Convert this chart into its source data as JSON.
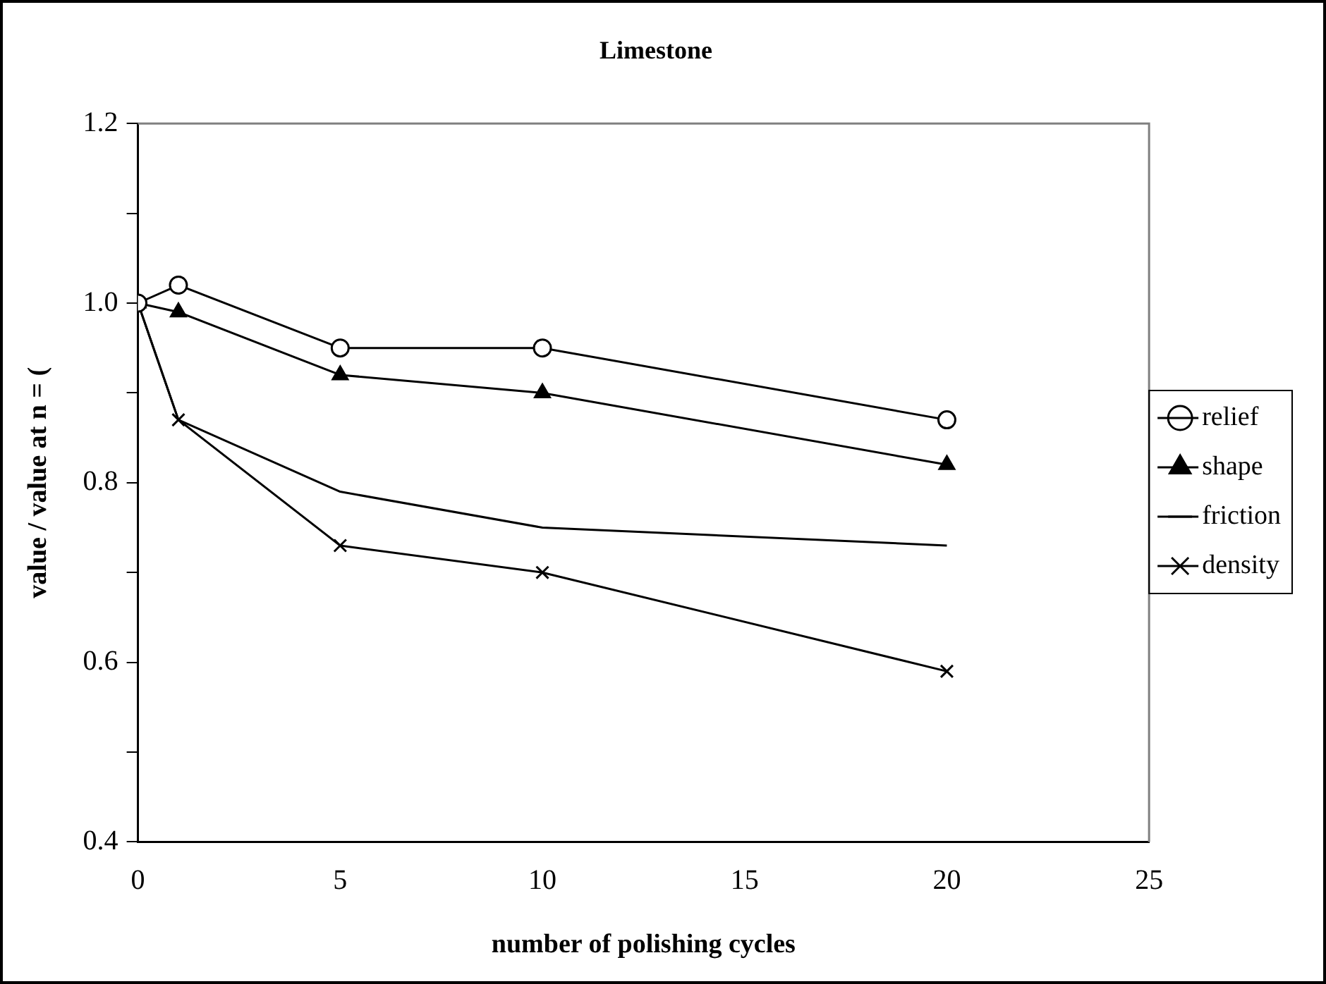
{
  "chart_data": {
    "type": "line",
    "title": "Limestone",
    "xlabel": "number of polishing cycles",
    "ylabel": "value / value at n = (",
    "x": [
      0,
      1,
      5,
      10,
      20
    ],
    "series": [
      {
        "name": "relief",
        "color": "#000000",
        "marker": "circle",
        "values": [
          1.0,
          1.02,
          0.95,
          0.95,
          0.87
        ]
      },
      {
        "name": "shape",
        "color": "#000000",
        "marker": "triangle",
        "values": [
          1.0,
          0.99,
          0.92,
          0.9,
          0.82
        ]
      },
      {
        "name": "friction",
        "color": "#000000",
        "marker": "none",
        "values": [
          1.0,
          0.87,
          0.79,
          0.75,
          0.73
        ]
      },
      {
        "name": "density",
        "color": "#000000",
        "marker": "cross",
        "values": [
          1.0,
          0.87,
          0.73,
          0.7,
          0.59
        ]
      }
    ],
    "xlim": [
      0,
      25
    ],
    "xticks": [
      0,
      5,
      10,
      15,
      20,
      25
    ],
    "ylim": [
      0.4,
      1.2
    ],
    "yticks": [
      {
        "value": 0.4,
        "label": "0.4"
      },
      {
        "value": 0.5,
        "label": null
      },
      {
        "value": 0.6,
        "label": "0.6"
      },
      {
        "value": 0.7,
        "label": null
      },
      {
        "value": 0.8,
        "label": "0.8"
      },
      {
        "value": 0.9,
        "label": null
      },
      {
        "value": 1.0,
        "label": "1.0"
      },
      {
        "value": 1.1,
        "label": null
      },
      {
        "value": 1.2,
        "label": "1.2"
      }
    ],
    "grid": false,
    "legend": "right",
    "line_style": "solid"
  }
}
